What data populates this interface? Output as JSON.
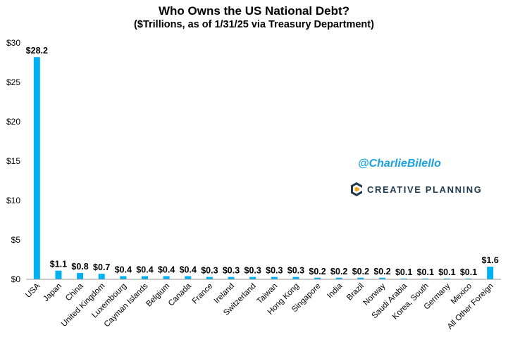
{
  "title": "Who Owns the US National Debt?",
  "subtitle": "($Trillions, as of 1/31/25 via Treasury Department)",
  "watermark": {
    "handle": "@CharlieBilello",
    "brand": "CREATIVE PLANNING",
    "brand_icon": "creative-planning-logo-icon"
  },
  "colors": {
    "bar": "#00b0f0",
    "axis": "#999999",
    "handle": "#1aa3df"
  },
  "chart_data": {
    "type": "bar",
    "categories": [
      "USA",
      "Japan",
      "China",
      "United Kingdom",
      "Luxembourg",
      "Cayman Islands",
      "Belgium",
      "Canada",
      "France",
      "Ireland",
      "Switzerland",
      "Taiwan",
      "Hong Kong",
      "Singapore",
      "India",
      "Brazil",
      "Norway",
      "Saudi Arabia",
      "Korea, South",
      "Germany",
      "Mexico",
      "All Other Foreign"
    ],
    "values": [
      28.2,
      1.1,
      0.8,
      0.7,
      0.4,
      0.4,
      0.4,
      0.4,
      0.3,
      0.3,
      0.3,
      0.3,
      0.3,
      0.2,
      0.2,
      0.2,
      0.2,
      0.1,
      0.1,
      0.1,
      0.1,
      1.6
    ],
    "data_labels": [
      "$28.2",
      "$1.1",
      "$0.8",
      "$0.7",
      "$0.4",
      "$0.4",
      "$0.4",
      "$0.4",
      "$0.3",
      "$0.3",
      "$0.3",
      "$0.3",
      "$0.3",
      "$0.2",
      "$0.2",
      "$0.2",
      "$0.2",
      "$0.1",
      "$0.1",
      "$0.1",
      "$0.1",
      "$1.6"
    ],
    "yticks": [
      0,
      5,
      10,
      15,
      20,
      25,
      30
    ],
    "ytick_labels": [
      "$0",
      "$5",
      "$10",
      "$15",
      "$20",
      "$25",
      "$30"
    ],
    "ylim": [
      0,
      30
    ],
    "grid": false,
    "legend": "none"
  }
}
